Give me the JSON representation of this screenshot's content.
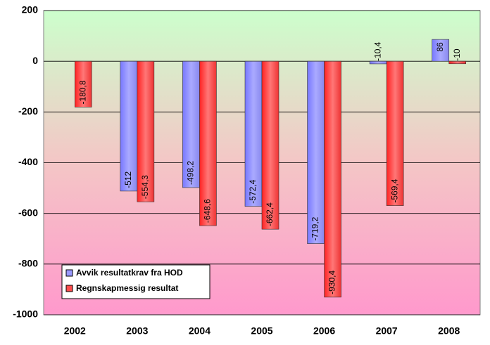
{
  "chart_data": {
    "type": "bar",
    "categories": [
      "2002",
      "2003",
      "2004",
      "2005",
      "2006",
      "2007",
      "2008"
    ],
    "series": [
      {
        "name": "Avvik resultatkrav fra HOD",
        "color": "#9999ff",
        "values": [
          null,
          -512,
          -498.2,
          -572.4,
          -719.2,
          -10.4,
          86
        ],
        "value_labels": [
          null,
          "-512",
          "-498,2",
          "-572,4",
          "-719,2",
          "-10,4",
          "86"
        ]
      },
      {
        "name": "Regnskapmessig resultat",
        "color": "#ff4d4d",
        "values": [
          -180.8,
          -554.3,
          -648.6,
          -662.4,
          -930.4,
          -569.4,
          -10
        ],
        "value_labels": [
          "-180,8",
          "-554,3",
          "-648,6",
          "-662,4",
          "-930,4",
          "-569,4",
          "-10"
        ]
      }
    ],
    "ylim": [
      -1000,
      200
    ],
    "yticks": [
      -1000,
      -800,
      -600,
      -400,
      -200,
      0,
      200
    ],
    "grid": true,
    "legend": "lower left"
  }
}
